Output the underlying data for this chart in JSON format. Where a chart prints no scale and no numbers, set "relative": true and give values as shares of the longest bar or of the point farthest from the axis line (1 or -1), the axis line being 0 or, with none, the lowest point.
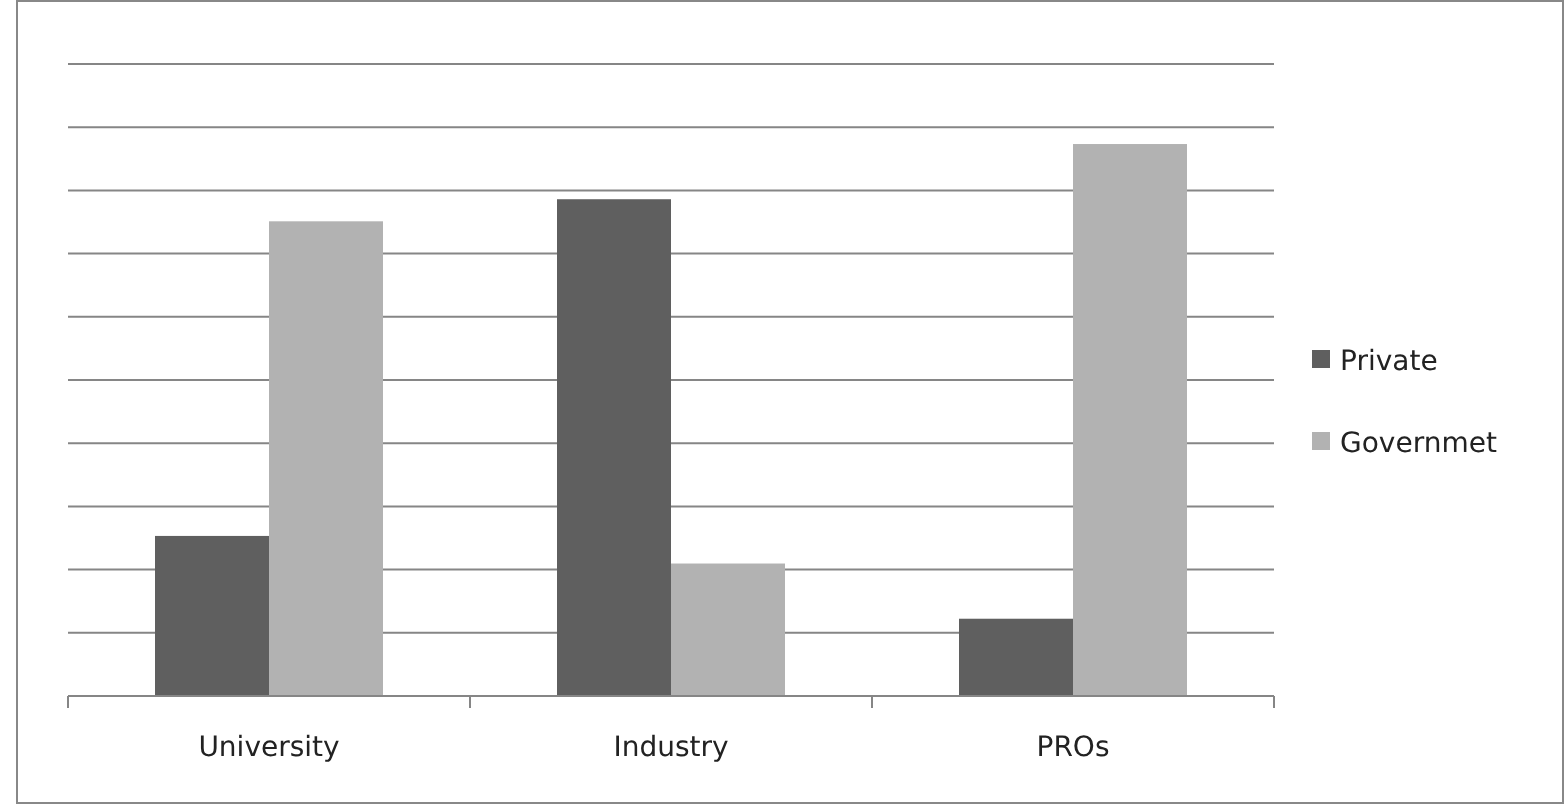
{
  "chart_data": {
    "type": "bar",
    "relative": true,
    "grid": true,
    "legend": "right",
    "categories": [
      "University",
      "Industry",
      "PROs"
    ],
    "series": [
      {
        "name": "Private",
        "color": "#5f5f5f",
        "values": [
          0.29,
          0.9,
          0.14
        ]
      },
      {
        "name": "Governmet",
        "color": "#b2b2b2",
        "values": [
          0.86,
          0.24,
          1
        ]
      }
    ]
  }
}
